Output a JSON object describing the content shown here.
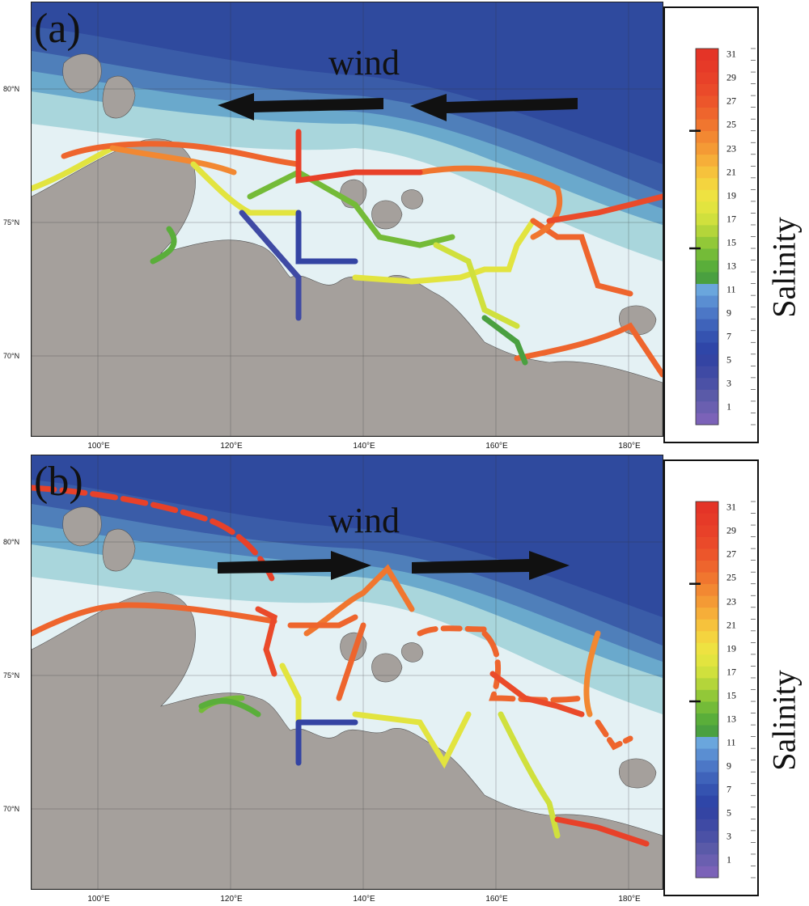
{
  "panels": [
    {
      "id": "a",
      "label": "(a)",
      "wind_label": "wind",
      "wind_direction": "westward"
    },
    {
      "id": "b",
      "label": "(b)",
      "wind_label": "wind",
      "wind_direction": "eastward"
    }
  ],
  "lat_labels": [
    "80°N",
    "75°N",
    "70°N"
  ],
  "lon_labels": [
    "100°E",
    "120°E",
    "140°E",
    "160°E",
    "180°E"
  ],
  "colorbar": {
    "title": "Salinity",
    "tick_labels": [
      "31",
      "29",
      "27",
      "25",
      "23",
      "21",
      "19",
      "17",
      "15",
      "13",
      "11",
      "9",
      "7",
      "5",
      "3",
      "1"
    ],
    "range": [
      0,
      32
    ],
    "marked_values": [
      15,
      25
    ],
    "colors": [
      "#7b62b8",
      "#6a5fb0",
      "#5a5aa8",
      "#4b51a6",
      "#3f4aa4",
      "#3444a3",
      "#2f46a8",
      "#3553b0",
      "#3f63ba",
      "#4c77c6",
      "#5a8ed2",
      "#6aa6dd",
      "#4aa040",
      "#5aae3a",
      "#74bb38",
      "#92c838",
      "#b4d53a",
      "#d0e03d",
      "#e2e43f",
      "#eee241",
      "#f4d43f",
      "#f6c23c",
      "#f6ae39",
      "#f49a35",
      "#f28832",
      "#f0762f",
      "#ee652d",
      "#ec562b",
      "#ea4a2a",
      "#e84129",
      "#e63a28",
      "#e43427"
    ]
  },
  "map_colors": {
    "deep_ocean": "#2f4a9e",
    "ocean_2": "#3a5ca8",
    "ocean_3": "#4f7fba",
    "ocean_4": "#6aa9cc",
    "shelf": "#a9d6dc",
    "shallow": "#e4f1f4",
    "land": "#a5a09c"
  }
}
